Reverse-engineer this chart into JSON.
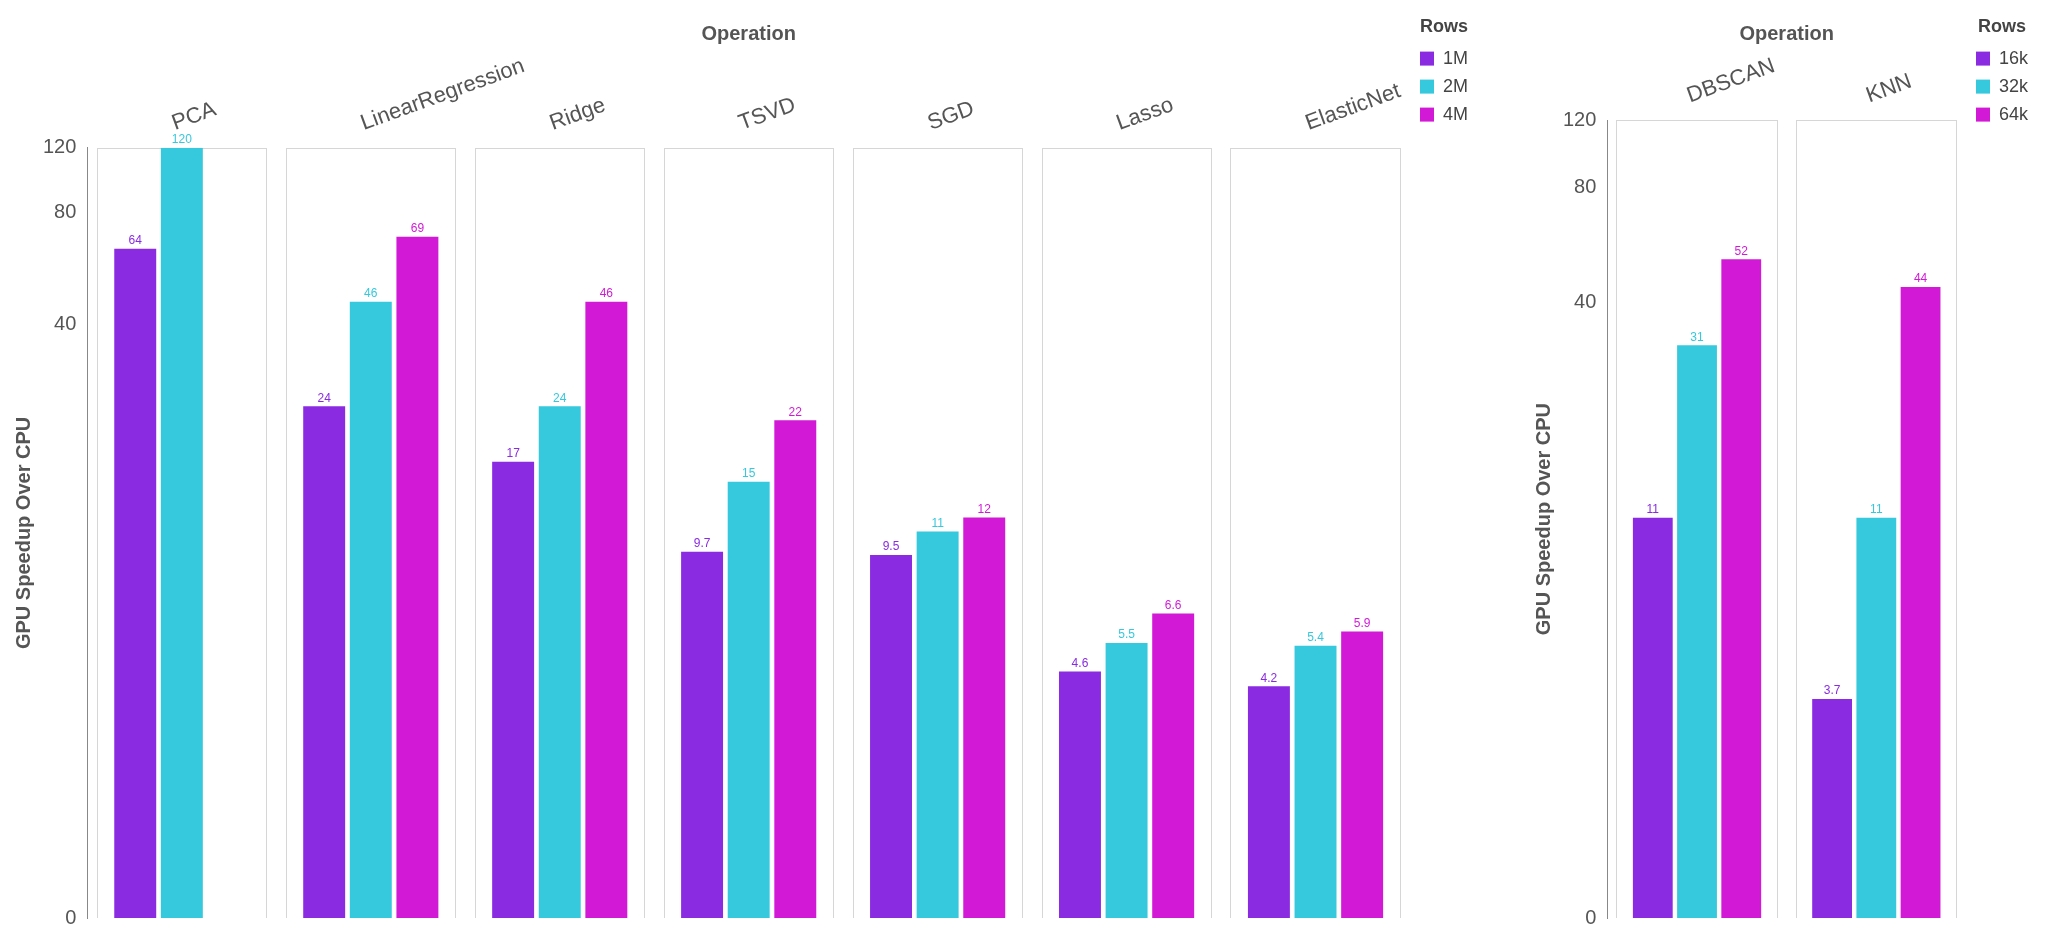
{
  "chart_data": [
    {
      "type": "bar",
      "xlabel": "Operation",
      "ylabel": "GPU Speedup Over CPU",
      "legend_title": "Rows",
      "categories": [
        "PCA",
        "LinearRegression",
        "Ridge",
        "TSVD",
        "SGD",
        "Lasso",
        "ElasticNet"
      ],
      "series": [
        {
          "name": "1M",
          "color": "#8a2be2",
          "values": [
            64,
            24,
            17,
            9.7,
            9.5,
            4.6,
            4.2
          ]
        },
        {
          "name": "2M",
          "color": "#36c8dc",
          "values": [
            120,
            46,
            24,
            15,
            11,
            5.5,
            5.4
          ]
        },
        {
          "name": "4M",
          "color": "#d21ad6",
          "values": [
            null,
            69,
            46,
            22,
            12,
            6.6,
            5.9
          ]
        }
      ],
      "ylim": [
        0,
        120
      ],
      "yticks": [
        0,
        40,
        80,
        120
      ],
      "log": true,
      "grid": false,
      "legend": "top right",
      "data_labels": true
    },
    {
      "type": "bar",
      "xlabel": "Operation",
      "ylabel": "GPU Speedup Over CPU",
      "legend_title": "Rows",
      "categories": [
        "DBSCAN",
        "KNN"
      ],
      "series": [
        {
          "name": "16k",
          "color": "#8a2be2",
          "values": [
            11,
            3.7
          ]
        },
        {
          "name": "32k",
          "color": "#36c8dc",
          "values": [
            31,
            11
          ]
        },
        {
          "name": "64k",
          "color": "#d21ad6",
          "values": [
            52,
            44
          ]
        }
      ],
      "ylim": [
        0,
        120
      ],
      "yticks": [
        0,
        40,
        80,
        120
      ],
      "log": true,
      "grid": false,
      "legend": "top right",
      "data_labels": true
    }
  ]
}
